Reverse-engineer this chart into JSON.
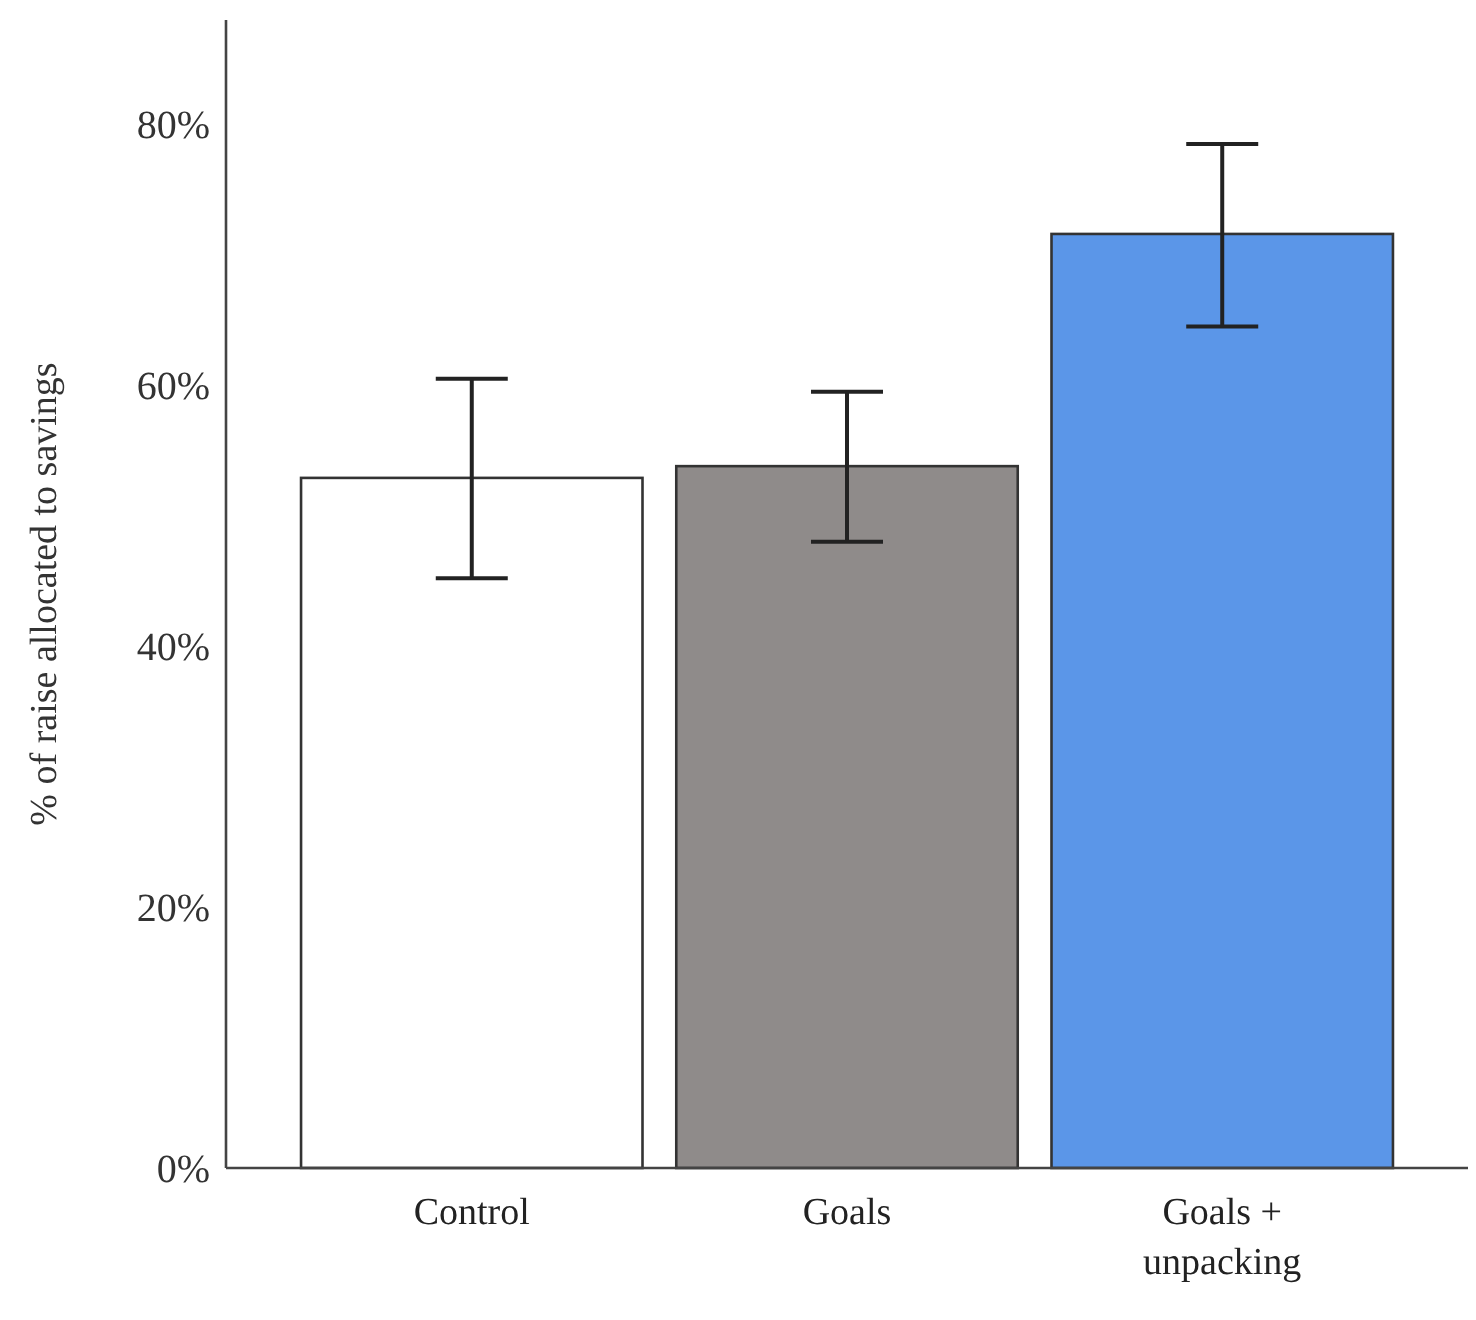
{
  "chart_data": {
    "type": "bar",
    "ylabel": "% of raise allocated to savings",
    "categories": [
      "Control",
      "Goals",
      "Goals + unpacking"
    ],
    "values": [
      52.9,
      53.8,
      71.6
    ],
    "colors": [
      "#ffffff",
      "#8f8b8a",
      "#5b96e8"
    ],
    "errors": [
      [
        45.2,
        60.5
      ],
      [
        48.0,
        59.5
      ],
      [
        64.5,
        78.5
      ]
    ],
    "ylim": [
      0,
      88
    ],
    "yticks": [
      {
        "value": 0,
        "label": "0%"
      },
      {
        "value": 20,
        "label": "20%"
      },
      {
        "value": 40,
        "label": "40%"
      },
      {
        "value": 60,
        "label": "60%"
      },
      {
        "value": 80,
        "label": "80%"
      }
    ],
    "grid": false
  }
}
